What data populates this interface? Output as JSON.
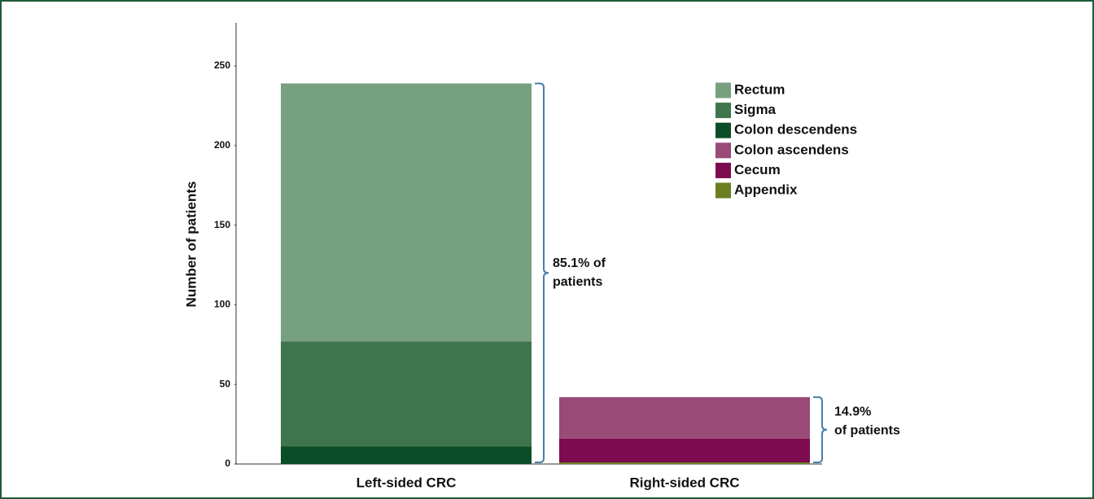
{
  "chart_data": {
    "type": "stacked-bar",
    "y_label": "Number of patients",
    "categories": [
      "Left-sided CRC",
      "Right-sided CRC"
    ],
    "series": [
      {
        "name": "Rectum",
        "color": "#77a07f",
        "values": [
          162,
          0
        ]
      },
      {
        "name": "Sigma",
        "color": "#3f754d",
        "values": [
          66,
          0
        ]
      },
      {
        "name": "Colon descendens",
        "color": "#0b4d27",
        "values": [
          11,
          0
        ]
      },
      {
        "name": "Colon ascendens",
        "color": "#9a4a77",
        "values": [
          0,
          26
        ]
      },
      {
        "name": "Cecum",
        "color": "#7d0b4f",
        "values": [
          0,
          15
        ]
      },
      {
        "name": "Appendix",
        "color": "#6b7f22",
        "values": [
          0,
          1
        ]
      }
    ],
    "ylim": [
      0,
      275
    ],
    "yticks": [
      0,
      50,
      100,
      150,
      200,
      250
    ],
    "annotations": [
      {
        "lines": [
          "85.1% of",
          "patients"
        ]
      },
      {
        "lines": [
          "14.9%",
          "of patients"
        ]
      }
    ],
    "legend": "top-right"
  }
}
